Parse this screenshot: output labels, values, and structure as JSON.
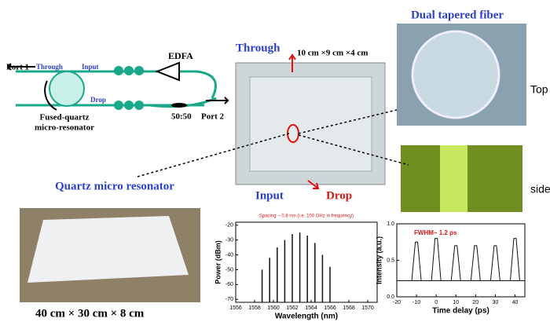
{
  "diagram": {
    "port1": "Port 1",
    "through_small": "Through",
    "input_small": "Input",
    "edfa": "EDFA",
    "drop_small": "Drop",
    "resonator_label_1": "Fused-quartz",
    "resonator_label_2": "micro-resonator",
    "coupler": "50:50",
    "port2": "Port 2"
  },
  "photos": {
    "through": "Through",
    "box_size": "10 cm ×9 cm ×4 cm",
    "input": "Input",
    "drop": "Drop",
    "quartz": "Quartz micro resonator",
    "dual": "Dual tapered fiber",
    "top": "Top",
    "side": "side",
    "package_size": "40 cm × 30 cm × 8 cm"
  },
  "chart_data": [
    {
      "type": "stem",
      "title": "Spacing ~ 0.8 nm (i.e. 100 GHz in frequency)",
      "x_label": "Wavelength (nm)",
      "y_label": "Power (dBm)",
      "x": [
        1558.8,
        1559.6,
        1560.4,
        1561.2,
        1562.0,
        1562.8,
        1563.6,
        1564.4,
        1565.2,
        1566.0
      ],
      "values": [
        -50,
        -42,
        -35,
        -30,
        -26,
        -25,
        -27,
        -32,
        -40,
        -48
      ],
      "color": "#111",
      "xlim": [
        1556,
        1571
      ],
      "xticks": [
        1556,
        1558,
        1560,
        1562,
        1564,
        1566,
        1568,
        1570
      ],
      "ylim": [
        -72,
        -18
      ],
      "yticks": [
        -20,
        -30,
        -40,
        -50,
        -60,
        -70
      ]
    },
    {
      "type": "pulse",
      "annotation": "FWHM~ 1.2 ps",
      "x_label": "Time delay (ps)",
      "y_label": "Intensity (a.u.)",
      "x": [
        -10,
        0,
        10,
        20,
        30,
        40
      ],
      "values": [
        0.75,
        0.8,
        0.7,
        0.7,
        0.7,
        0.8
      ],
      "color": "#111",
      "xlim": [
        -20,
        45
      ],
      "xticks": [
        -20,
        -10,
        0,
        10,
        20,
        30,
        40
      ],
      "ylim": [
        0,
        1
      ],
      "yticks": [
        {
          "value": 0,
          "label": "0.0"
        },
        {
          "value": 0.5,
          "label": "0.5"
        },
        {
          "value": 1,
          "label": "1.0"
        }
      ]
    }
  ]
}
